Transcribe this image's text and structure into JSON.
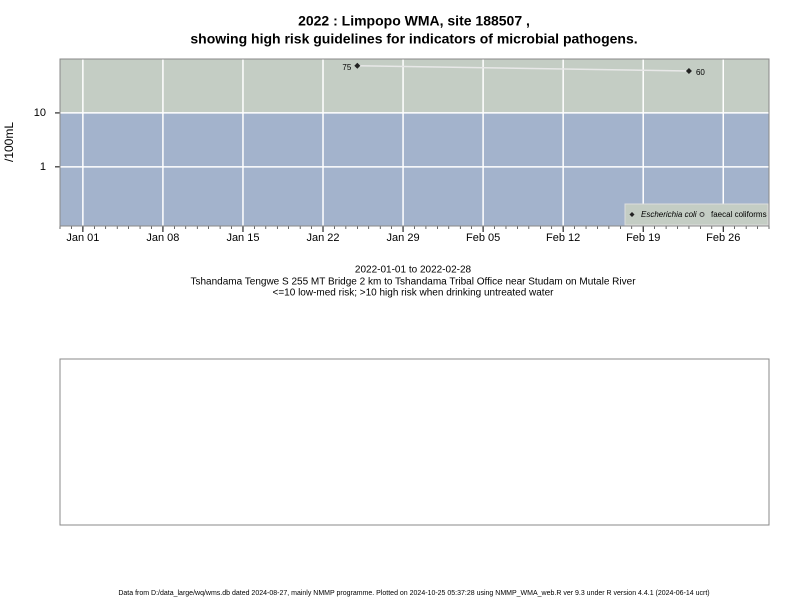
{
  "chart_data": {
    "type": "line",
    "title": "2022 : Limpopo WMA, site 188507 ,",
    "subtitle": "showing high risk guidelines for indicators of microbial pathogens.",
    "y_label": "/100mL",
    "log_scale": true,
    "ylim": [
      0.08,
      100
    ],
    "yticks": [
      10,
      1
    ],
    "threshold": 10,
    "band_colors": [
      "#a3b3cc",
      "#c4cdc4"
    ],
    "xlim": [
      "2021-12-30",
      "2022-03-02"
    ],
    "xticks": [
      {
        "value": "2022-01-01",
        "label": "Jan 01"
      },
      {
        "value": "2022-01-08",
        "label": "Jan 08"
      },
      {
        "value": "2022-01-15",
        "label": "Jan 15"
      },
      {
        "value": "2022-01-22",
        "label": "Jan 22"
      },
      {
        "value": "2022-01-29",
        "label": "Jan 29"
      },
      {
        "value": "2022-02-05",
        "label": "Feb 05"
      },
      {
        "value": "2022-02-12",
        "label": "Feb 12"
      },
      {
        "value": "2022-02-19",
        "label": "Feb 19"
      },
      {
        "value": "2022-02-26",
        "label": "Feb 26"
      }
    ],
    "grid": true,
    "legend": "bottom-right",
    "series": [
      {
        "name": "Escherichia coli",
        "color": "#222222",
        "marker": "diamond",
        "x": [
          "2022-01-25",
          "2022-02-23"
        ],
        "values": [
          75,
          60
        ]
      },
      {
        "name": "faecal coliforms",
        "color": "#444444",
        "marker": "circle",
        "x": [],
        "values": []
      }
    ],
    "date_range": "2022-01-01 to 2022-02-28",
    "site_description": "Tshandama Tengwe S 255 MT Bridge 2 km to Tshandama Tribal Office near Studam on Mutale River",
    "risk_note": "<=10 low-med risk; >10 high risk when drinking untreated water",
    "footer": "Data from D:/data_large/wq/wms.db dated 2024-08-27, mainly NMMP programme. Plotted on 2024-10-25 05:37:28 using NMMP_WMA_web.R ver 9.3 under R version 4.4.1 (2024-06-14 ucrt)"
  }
}
